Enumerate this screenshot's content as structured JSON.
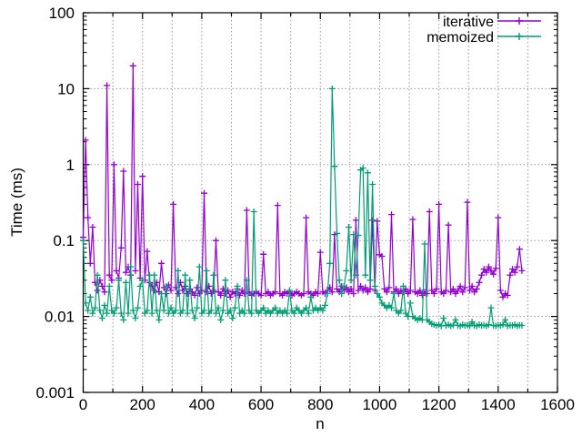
{
  "page": {
    "background": "#ffffff"
  },
  "chart_data": {
    "type": "line",
    "title": "",
    "xlabel": "n",
    "ylabel": "Time (ms)",
    "x_axis": {
      "min": 0,
      "max": 1600,
      "major_tick_step": 200,
      "minor_tick_step": 100,
      "tick_values": [
        0,
        200,
        400,
        600,
        800,
        1000,
        1200,
        1400,
        1600
      ],
      "tick_labels": [
        "0",
        "200",
        "400",
        "600",
        "800",
        "1000",
        "1200",
        "1400",
        "1600"
      ]
    },
    "y_axis": {
      "scale": "log",
      "min": 0.001,
      "max": 100,
      "tick_values": [
        0.001,
        0.01,
        0.1,
        1,
        10,
        100
      ],
      "tick_labels": [
        "0.001",
        "0.01",
        "0.1",
        "1",
        "10",
        "100"
      ]
    },
    "grid": {
      "show": true,
      "color": "#999999",
      "style": "dotted"
    },
    "legend": {
      "position": "top-right-inside"
    },
    "series": [
      {
        "name": "iterative",
        "color": "#9400d3",
        "marker": "plus",
        "style": "linespoints",
        "x_start": 0,
        "x_step": 8,
        "values": [
          0.11,
          2.1,
          0.2,
          0.05,
          0.15,
          0.028,
          0.022,
          0.03,
          0.025,
          0.021,
          11.0,
          0.035,
          0.03,
          1.0,
          0.04,
          0.032,
          0.08,
          0.82,
          0.038,
          0.045,
          0.035,
          20.0,
          0.04,
          0.55,
          0.032,
          0.7,
          0.03,
          0.072,
          0.028,
          0.025,
          0.022,
          0.028,
          0.021,
          0.05,
          0.024,
          0.02,
          0.026,
          0.022,
          0.3,
          0.024,
          0.02,
          0.028,
          0.022,
          0.025,
          0.02,
          0.023,
          0.021,
          0.019,
          0.024,
          0.02,
          0.022,
          0.42,
          0.021,
          0.025,
          0.02,
          0.022,
          0.1,
          0.021,
          0.019,
          0.023,
          0.02,
          0.022,
          0.018,
          0.021,
          0.02,
          0.023,
          0.019,
          0.022,
          0.02,
          0.25,
          0.021,
          0.019,
          0.02,
          0.021,
          0.02,
          0.019,
          0.066,
          0.02,
          0.021,
          0.019,
          0.02,
          0.021,
          0.29,
          0.02,
          0.019,
          0.021,
          0.02,
          0.021,
          0.019,
          0.02,
          0.021,
          0.02,
          0.019,
          0.02,
          0.2,
          0.021,
          0.02,
          0.019,
          0.021,
          0.02,
          0.07,
          0.021,
          0.02,
          0.022,
          0.024,
          0.021,
          0.12,
          0.023,
          0.021,
          0.025,
          0.022,
          0.024,
          0.021,
          0.023,
          0.02,
          0.185,
          0.022,
          0.025,
          0.022,
          0.024,
          0.021,
          0.023,
          0.185,
          0.022,
          0.18,
          0.065,
          0.062,
          0.023,
          0.021,
          0.024,
          0.22,
          0.021,
          0.023,
          0.02,
          0.022,
          0.021,
          0.023,
          0.02,
          0.022,
          0.19,
          0.021,
          0.02,
          0.022,
          0.019,
          0.021,
          0.02,
          0.24,
          0.022,
          0.02,
          0.023,
          0.3,
          0.021,
          0.02,
          0.022,
          0.16,
          0.021,
          0.023,
          0.02,
          0.022,
          0.025,
          0.021,
          0.024,
          0.32,
          0.022,
          0.025,
          0.021,
          0.023,
          0.028,
          0.035,
          0.042,
          0.038,
          0.045,
          0.04,
          0.036,
          0.043,
          0.2,
          0.022,
          0.018,
          0.02,
          0.019,
          0.035,
          0.042,
          0.038,
          0.045,
          0.077,
          0.04
        ]
      },
      {
        "name": "memoized",
        "color": "#009e73",
        "marker": "plus",
        "style": "linespoints",
        "x_start": 0,
        "x_step": 8,
        "values": [
          0.1,
          0.015,
          0.012,
          0.018,
          0.011,
          0.013,
          0.035,
          0.012,
          0.0095,
          0.014,
          0.011,
          0.025,
          0.012,
          0.011,
          0.013,
          0.03,
          0.011,
          0.009,
          0.028,
          0.011,
          0.045,
          0.012,
          0.0095,
          0.013,
          0.025,
          0.03,
          0.011,
          0.012,
          0.035,
          0.011,
          0.035,
          0.012,
          0.009,
          0.02,
          0.012,
          0.025,
          0.011,
          0.013,
          0.011,
          0.012,
          0.04,
          0.011,
          0.012,
          0.035,
          0.011,
          0.03,
          0.012,
          0.0095,
          0.013,
          0.045,
          0.011,
          0.012,
          0.04,
          0.011,
          0.012,
          0.035,
          0.011,
          0.013,
          0.009,
          0.012,
          0.03,
          0.011,
          0.012,
          0.0095,
          0.013,
          0.025,
          0.011,
          0.012,
          0.011,
          0.03,
          0.012,
          0.011,
          0.24,
          0.012,
          0.011,
          0.012,
          0.013,
          0.011,
          0.012,
          0.011,
          0.012,
          0.013,
          0.011,
          0.012,
          0.011,
          0.012,
          0.011,
          0.022,
          0.012,
          0.011,
          0.013,
          0.012,
          0.011,
          0.012,
          0.013,
          0.011,
          0.018,
          0.012,
          0.013,
          0.012,
          0.013,
          0.012,
          0.014,
          0.02,
          0.05,
          10.0,
          0.95,
          0.124,
          0.03,
          0.02,
          0.025,
          0.04,
          0.15,
          0.03,
          0.12,
          0.035,
          0.117,
          0.85,
          0.9,
          0.035,
          0.78,
          0.03,
          0.55,
          0.025,
          0.02,
          0.018,
          0.015,
          0.014,
          0.013,
          0.014,
          0.013,
          0.02,
          0.012,
          0.011,
          0.012,
          0.025,
          0.011,
          0.01,
          0.015,
          0.01,
          0.0095,
          0.009,
          0.0095,
          0.009,
          0.09,
          0.009,
          0.0085,
          0.008,
          0.0078,
          0.0076,
          0.0078,
          0.0075,
          0.0095,
          0.0076,
          0.0078,
          0.0075,
          0.0077,
          0.009,
          0.0076,
          0.0075,
          0.0078,
          0.0076,
          0.0077,
          0.0075,
          0.0085,
          0.0076,
          0.0075,
          0.0078,
          0.0076,
          0.0077,
          0.0075,
          0.0078,
          0.013,
          0.0076,
          0.0075,
          0.0077,
          0.0076,
          0.0078,
          0.009,
          0.0075,
          0.0077,
          0.0076,
          0.0078,
          0.0075,
          0.0077,
          0.0076
        ]
      }
    ]
  }
}
